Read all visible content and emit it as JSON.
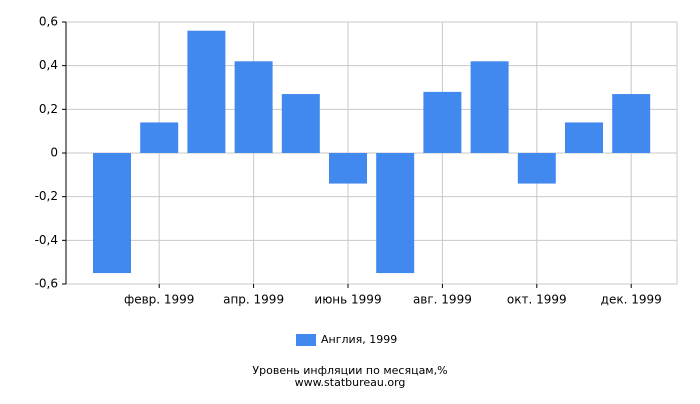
{
  "chart_data": {
    "type": "bar",
    "title": "Уровень инфляции по месяцам,%",
    "source": "www.statbureau.org",
    "categories": [
      null,
      "февр. 1999",
      null,
      "апр. 1999",
      null,
      "июнь 1999",
      null,
      "авг. 1999",
      null,
      "окт. 1999",
      null,
      "дек. 1999"
    ],
    "series": [
      {
        "name": "Англия, 1999",
        "color": "#4189ee",
        "values": [
          -0.55,
          0.14,
          0.56,
          0.42,
          0.27,
          -0.14,
          -0.55,
          0.28,
          0.42,
          -0.14,
          0.14,
          0.27
        ]
      }
    ],
    "ylim": [
      -0.6,
      0.6
    ],
    "yticks": [
      {
        "value": -0.6,
        "label": "-0,6"
      },
      {
        "value": -0.4,
        "label": "-0,4"
      },
      {
        "value": -0.2,
        "label": "-0,2"
      },
      0,
      {
        "value": 0.2,
        "label": "0,2"
      },
      {
        "value": 0.4,
        "label": "0,4"
      },
      {
        "value": 0.6,
        "label": "0,6"
      }
    ],
    "grid": true,
    "legend": "bottom"
  }
}
